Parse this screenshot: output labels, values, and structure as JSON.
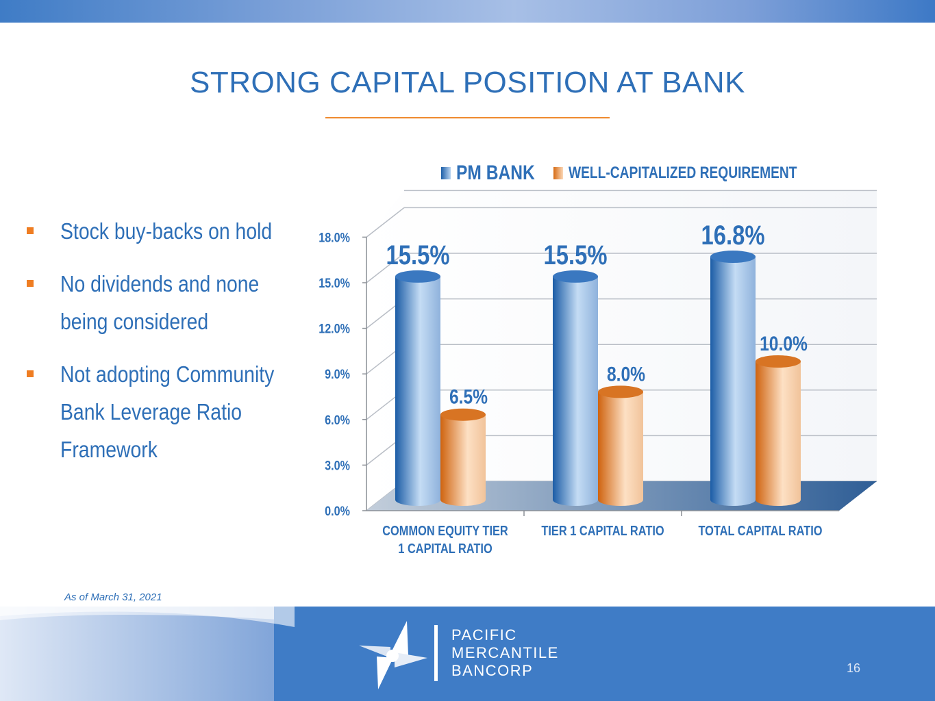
{
  "slide": {
    "title": "STRONG CAPITAL POSITION AT BANK",
    "bullets": [
      "Stock buy-backs on hold",
      "No dividends and none being considered",
      "Not adopting Community Bank Leverage Ratio Framework"
    ],
    "as_of": "As of March 31, 2021",
    "page_number": "16"
  },
  "brand": {
    "lines": [
      "PACIFIC",
      "MERCANTILE",
      "BANCORP"
    ]
  },
  "colors": {
    "title_blue": "#2e6fb7",
    "accent_orange": "#ef7d22",
    "footer_blue": "#3f7cc6",
    "bar_blue": "#2a6db5",
    "bar_orange": "#e67a22"
  },
  "chart_data": {
    "type": "bar",
    "categories": [
      "COMMON EQUITY TIER 1 CAPITAL RATIO",
      "TIER 1 CAPITAL RATIO",
      "TOTAL CAPITAL RATIO"
    ],
    "series": [
      {
        "name": "PM BANK",
        "values": [
          15.5,
          15.5,
          16.8
        ],
        "labels": [
          "15.5%",
          "15.5%",
          "16.8%"
        ]
      },
      {
        "name": "WELL-CAPITALIZED  REQUIREMENT",
        "values": [
          6.5,
          8.0,
          10.0
        ],
        "labels": [
          "6.5%",
          "8.0%",
          "10.0%"
        ]
      }
    ],
    "y_ticks": [
      "0.0%",
      "3.0%",
      "6.0%",
      "9.0%",
      "12.0%",
      "15.0%",
      "18.0%"
    ],
    "ylim": [
      0,
      18
    ],
    "grid": true,
    "legend_position": "top",
    "style": "3d-cylinder"
  }
}
